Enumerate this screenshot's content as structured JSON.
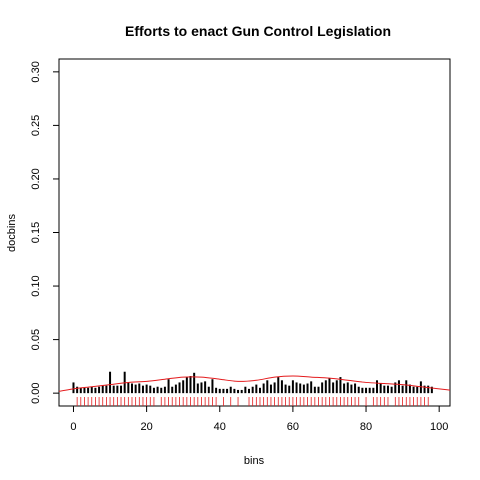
{
  "chart_data": {
    "type": "bar",
    "title": "Efforts to enact Gun Control Legislation",
    "xlabel": "bins",
    "ylabel": "docbins",
    "xlim": [
      -3.96,
      102.96
    ],
    "ylim": [
      -0.012,
      0.312
    ],
    "xticks": [
      "0",
      "20",
      "40",
      "60",
      "80",
      "100"
    ],
    "yticks": [
      "0.00",
      "0.05",
      "0.10",
      "0.15",
      "0.20",
      "0.25",
      "0.30"
    ],
    "xtick_values": [
      0,
      20,
      40,
      60,
      80,
      100
    ],
    "ytick_values": [
      0,
      0.05,
      0.1,
      0.15,
      0.2,
      0.25,
      0.3
    ],
    "grid": false,
    "colors": {
      "bars": "#000000",
      "density": "#e41a1c",
      "rug": "#e41a1c"
    },
    "bars": {
      "x": [
        0,
        1,
        2,
        3,
        4,
        5,
        6,
        7,
        8,
        9,
        10,
        11,
        12,
        13,
        14,
        15,
        16,
        17,
        18,
        19,
        20,
        21,
        22,
        23,
        24,
        25,
        26,
        27,
        28,
        29,
        30,
        31,
        32,
        33,
        34,
        35,
        36,
        37,
        38,
        39,
        40,
        41,
        42,
        43,
        44,
        45,
        46,
        47,
        48,
        49,
        50,
        51,
        52,
        53,
        54,
        55,
        56,
        57,
        58,
        59,
        60,
        61,
        62,
        63,
        64,
        65,
        66,
        67,
        68,
        69,
        70,
        71,
        72,
        73,
        74,
        75,
        76,
        77,
        78,
        79,
        80,
        81,
        82,
        83,
        84,
        85,
        86,
        87,
        88,
        89,
        90,
        91,
        92,
        93,
        94,
        95,
        96,
        97,
        98
      ],
      "values": [
        0.01,
        0.006,
        0.005,
        0.005,
        0.005,
        0.006,
        0.005,
        0.006,
        0.007,
        0.007,
        0.02,
        0.007,
        0.007,
        0.007,
        0.02,
        0.01,
        0.009,
        0.008,
        0.009,
        0.007,
        0.008,
        0.007,
        0.005,
        0.006,
        0.005,
        0.006,
        0.013,
        0.006,
        0.008,
        0.01,
        0.012,
        0.015,
        0.016,
        0.019,
        0.009,
        0.01,
        0.011,
        0.006,
        0.013,
        0.005,
        0.004,
        0.004,
        0.004,
        0.006,
        0.004,
        0.003,
        0.003,
        0.006,
        0.004,
        0.006,
        0.008,
        0.005,
        0.009,
        0.012,
        0.008,
        0.01,
        0.015,
        0.012,
        0.008,
        0.007,
        0.012,
        0.01,
        0.009,
        0.008,
        0.009,
        0.011,
        0.006,
        0.006,
        0.01,
        0.012,
        0.014,
        0.01,
        0.012,
        0.015,
        0.009,
        0.01,
        0.008,
        0.009,
        0.006,
        0.005,
        0.005,
        0.005,
        0.005,
        0.012,
        0.009,
        0.007,
        0.007,
        0.006,
        0.01,
        0.012,
        0.007,
        0.012,
        0.008,
        0.006,
        0.006,
        0.011,
        0.007,
        0.007,
        0.006
      ]
    },
    "density": {
      "x": [
        -5,
        0,
        5,
        10,
        15,
        20,
        25,
        30,
        35,
        40,
        45,
        50,
        55,
        60,
        65,
        70,
        75,
        80,
        85,
        90,
        95,
        100,
        105
      ],
      "y": [
        0.001,
        0.004,
        0.006,
        0.008,
        0.01,
        0.011,
        0.013,
        0.015,
        0.015,
        0.013,
        0.011,
        0.012,
        0.015,
        0.016,
        0.015,
        0.014,
        0.012,
        0.01,
        0.009,
        0.008,
        0.006,
        0.004,
        0.002
      ]
    },
    "rug": [
      1,
      2,
      3,
      4,
      5,
      6,
      7,
      8,
      9,
      10,
      11,
      12,
      13,
      14,
      15,
      16,
      17,
      18,
      19,
      20,
      21,
      22,
      24,
      25,
      26,
      27,
      28,
      29,
      30,
      31,
      32,
      33,
      34,
      35,
      36,
      37,
      38,
      39,
      41,
      43,
      45,
      48,
      49,
      50,
      51,
      52,
      53,
      54,
      55,
      56,
      57,
      58,
      59,
      60,
      61,
      62,
      63,
      64,
      65,
      66,
      67,
      68,
      69,
      70,
      71,
      72,
      73,
      74,
      75,
      76,
      77,
      78,
      80,
      82,
      83,
      84,
      85,
      86,
      88,
      89,
      90,
      91,
      92,
      93,
      94,
      95,
      96,
      97
    ]
  }
}
